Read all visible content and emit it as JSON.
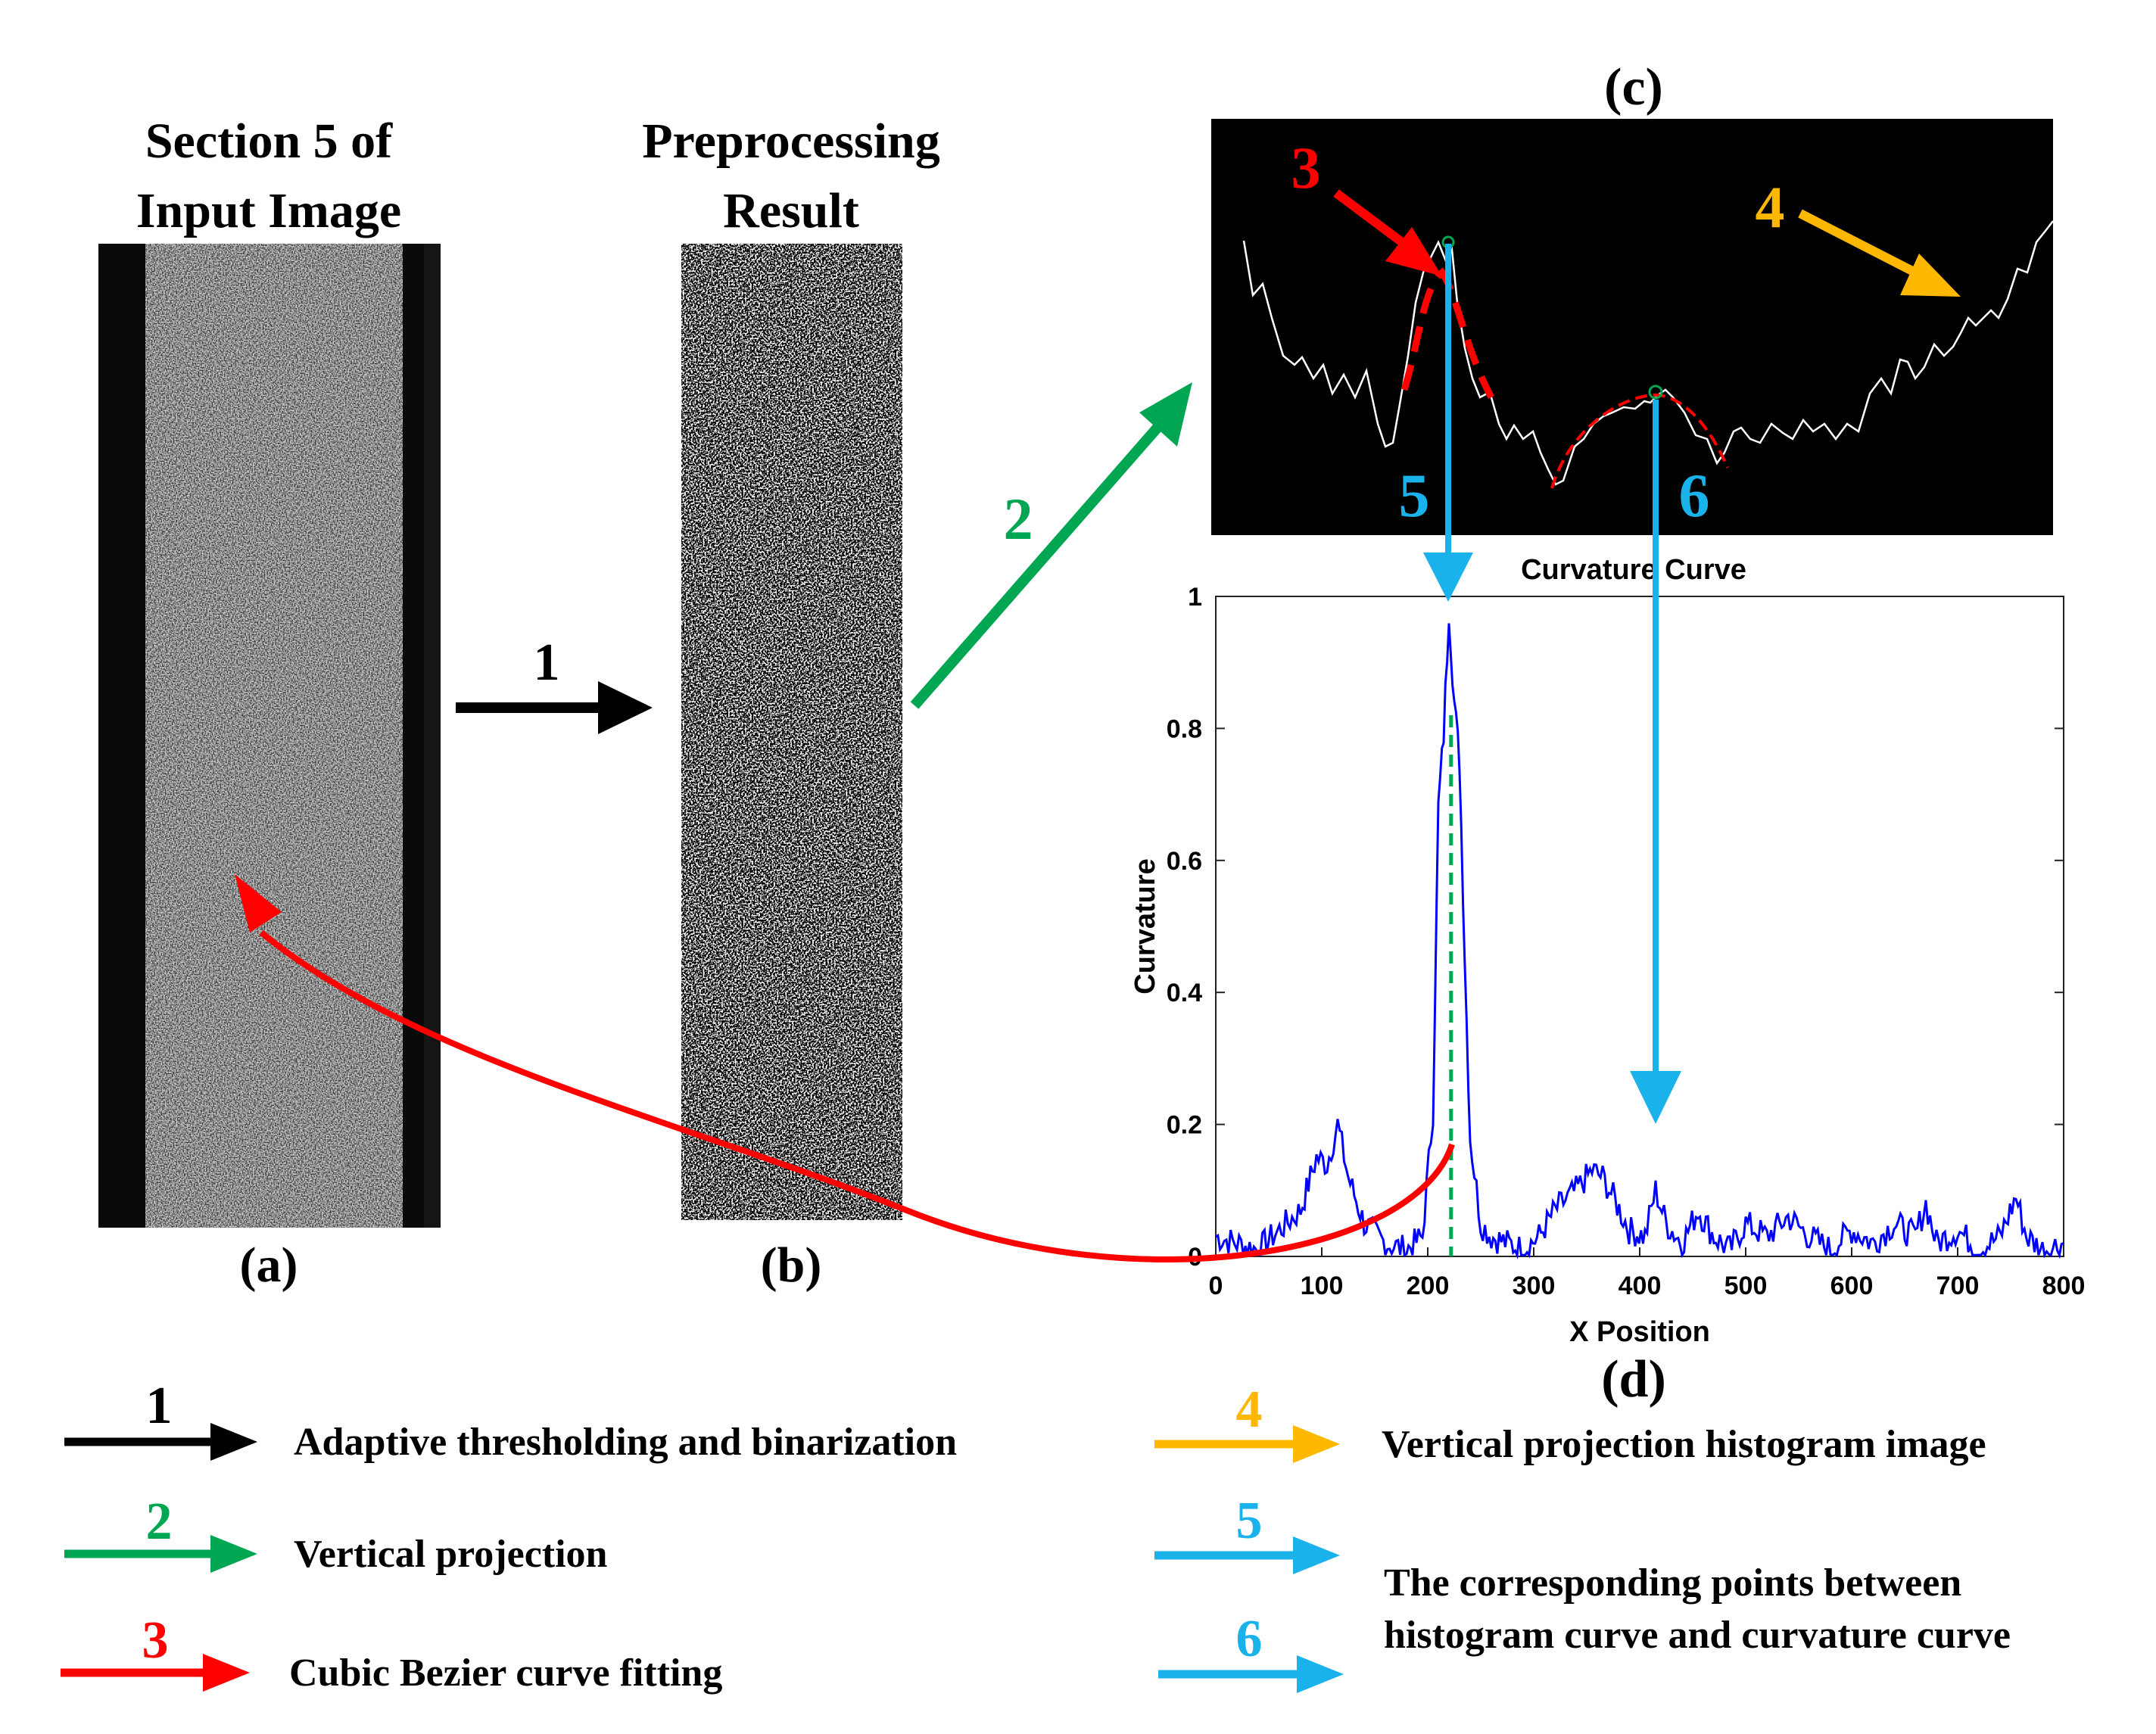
{
  "panels": {
    "a": {
      "title_line1": "Section 5 of",
      "title_line2": "Input Image",
      "label": "(a)"
    },
    "b": {
      "title_line1": "Preprocessing",
      "title_line2": "Result",
      "label": "(b)"
    },
    "c": {
      "label": "(c)"
    },
    "d": {
      "label": "(d)"
    }
  },
  "step_numbers": {
    "one": "1",
    "two": "2",
    "three": "3",
    "four": "4",
    "five": "5",
    "six": "6"
  },
  "colors": {
    "step1": "#000000",
    "step2": "#00a651",
    "step3": "#ff0000",
    "step4": "#ffb800",
    "step56": "#1ab2ea",
    "curve": "#0000ff",
    "peak_line": "#00a651"
  },
  "legend": {
    "items": [
      {
        "num": "1",
        "text": "Adaptive thresholding and binarization"
      },
      {
        "num": "2",
        "text": "Vertical projection"
      },
      {
        "num": "3",
        "text": "Cubic Bezier curve fitting"
      },
      {
        "num": "4",
        "text": "Vertical projection histogram image"
      },
      {
        "num": "5",
        "text": ""
      },
      {
        "num": "6",
        "text": ""
      }
    ],
    "text56_line1": "The corresponding points between",
    "text56_line2": "histogram curve and curvature curve"
  },
  "chart_data": {
    "type": "line",
    "title": "Curvature Curve",
    "xlabel": "X Position",
    "ylabel": "Curvature",
    "xlim": [
      0,
      800
    ],
    "ylim": [
      0,
      1
    ],
    "xticks": [
      "0",
      "100",
      "200",
      "300",
      "400",
      "500",
      "600",
      "700",
      "800"
    ],
    "yticks": [
      "0",
      "0.2",
      "0.4",
      "0.6",
      "0.8",
      "1"
    ],
    "grid": false,
    "series": [
      {
        "name": "Curvature",
        "x": [
          0,
          20,
          40,
          60,
          80,
          95,
          105,
          115,
          125,
          140,
          160,
          180,
          195,
          205,
          210,
          215,
          220,
          225,
          230,
          235,
          240,
          250,
          260,
          275,
          290,
          305,
          320,
          340,
          355,
          365,
          375,
          390,
          405,
          415,
          425,
          440,
          455,
          470,
          485,
          500,
          520,
          540,
          560,
          580,
          600,
          620,
          640,
          660,
          670,
          680,
          700,
          720,
          740,
          755,
          765,
          780,
          800
        ],
        "y": [
          0.03,
          0.02,
          0.01,
          0.04,
          0.07,
          0.15,
          0.14,
          0.2,
          0.12,
          0.05,
          0.02,
          0.01,
          0.03,
          0.22,
          0.68,
          0.79,
          0.98,
          0.84,
          0.75,
          0.45,
          0.18,
          0.05,
          0.03,
          0.02,
          0.01,
          0.03,
          0.07,
          0.1,
          0.13,
          0.12,
          0.09,
          0.04,
          0.03,
          0.1,
          0.05,
          0.02,
          0.07,
          0.03,
          0.01,
          0.05,
          0.03,
          0.06,
          0.03,
          0.01,
          0.04,
          0.02,
          0.05,
          0.03,
          0.08,
          0.02,
          0.04,
          0.01,
          0.03,
          0.09,
          0.03,
          0.01,
          0.02
        ]
      }
    ],
    "peak_x": 222
  }
}
